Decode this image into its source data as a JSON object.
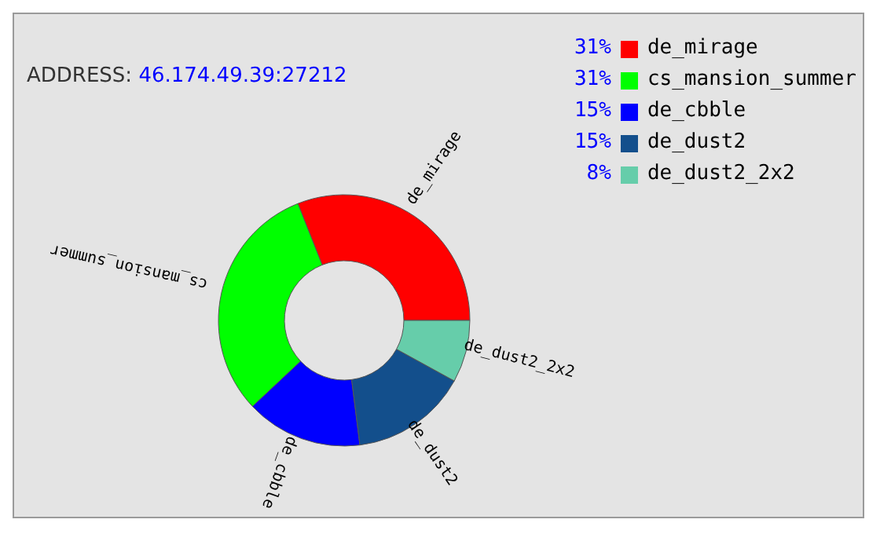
{
  "chart_data": {
    "type": "donut",
    "subtitle": "ADDRESS: 46.174.49.39:27212",
    "categories": [
      "de_mirage",
      "cs_mansion_summer",
      "de_cbble",
      "de_dust2",
      "de_dust2_2x2"
    ],
    "values": [
      31,
      31,
      15,
      15,
      8
    ],
    "value_labels": [
      "31%",
      "31%",
      "15%",
      "15%",
      "8%"
    ],
    "colors": [
      "#ff0000",
      "#00ff00",
      "#0000ff",
      "#134f8c",
      "#66cdaa"
    ],
    "legend": "top right"
  }
}
